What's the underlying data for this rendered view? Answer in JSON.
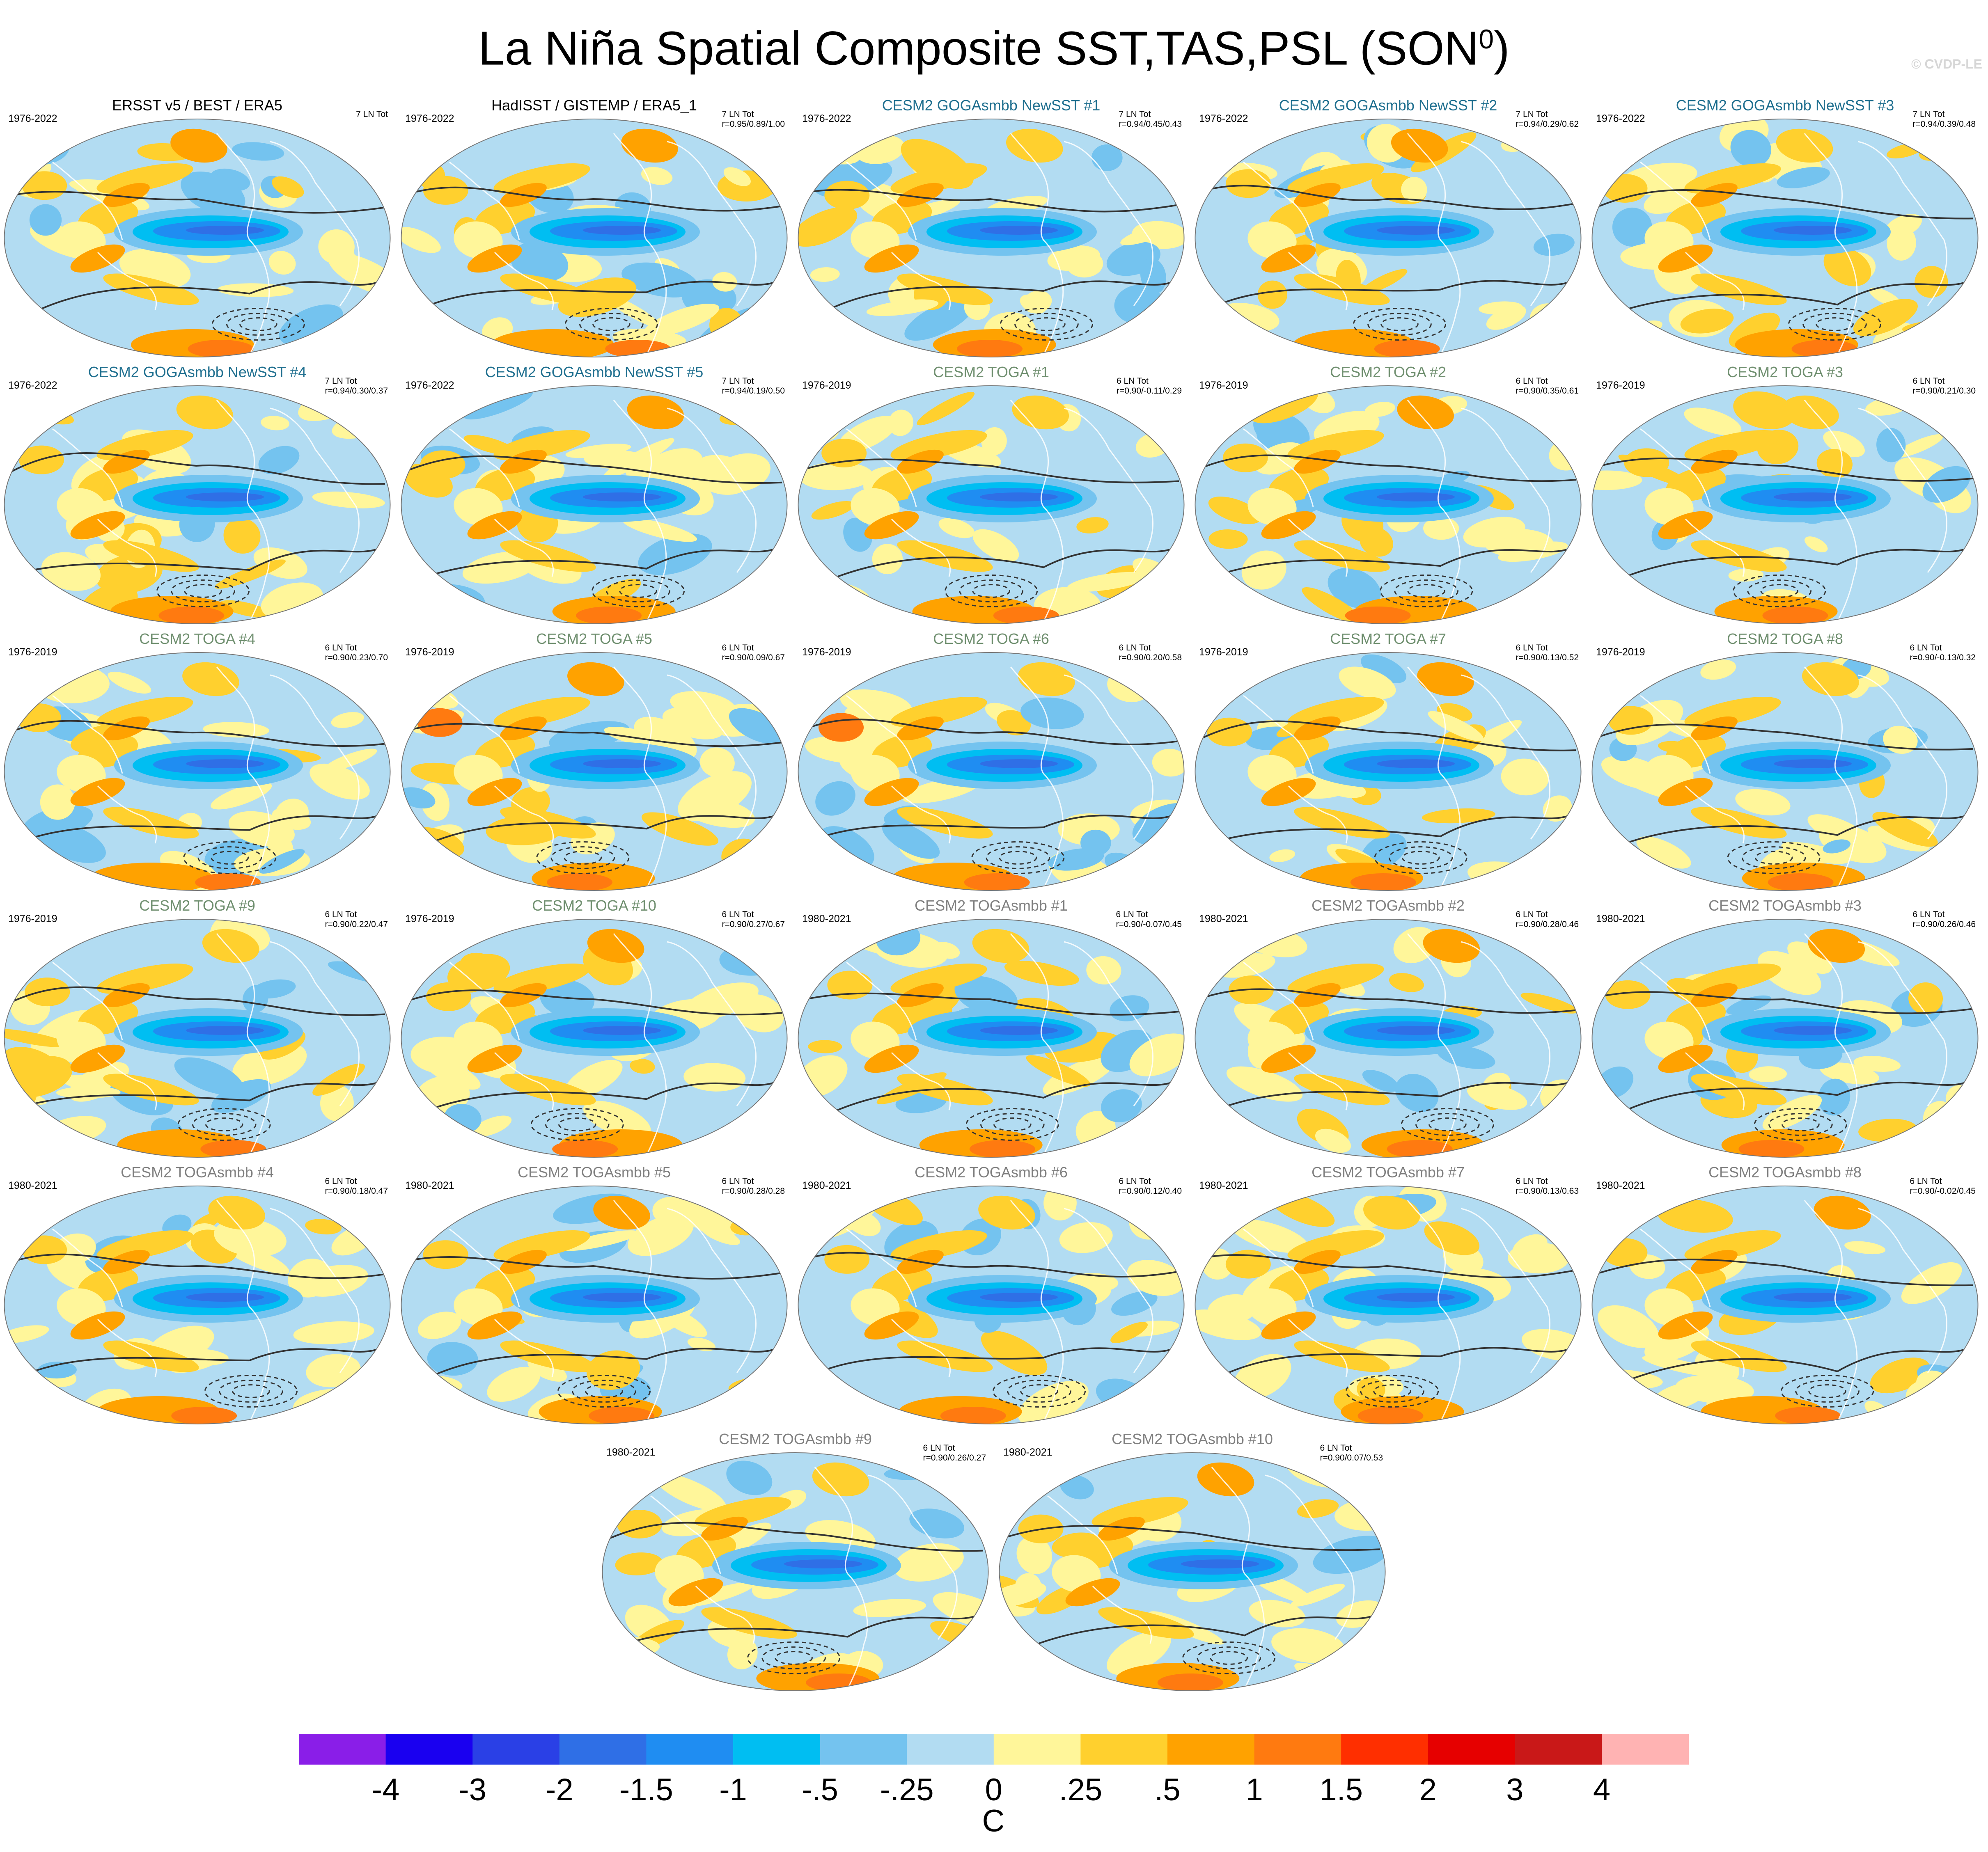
{
  "chart_data": {
    "type": "heatmap",
    "title": "La Niña Spatial Composite SST,TAS,PSL (SON",
    "title_superscript": "0",
    "title_suffix": ")",
    "watermark": "© CVDP-LE",
    "projection": "Robinson (global)",
    "colorbar": {
      "units": "C",
      "tick_labels": [
        "-4",
        "-3",
        "-2",
        "-1.5",
        "-1",
        "-.5",
        "-.25",
        "0",
        ".25",
        ".5",
        "1",
        "1.5",
        "2",
        "3",
        "4"
      ],
      "colors": [
        "#8a1ee8",
        "#1a00f0",
        "#2a40e6",
        "#2f6fe6",
        "#1f8df2",
        "#00bef2",
        "#74c3ef",
        "#b2dcf2",
        "#fff69a",
        "#ffd02e",
        "#ffa200",
        "#ff7a10",
        "#ff2f00",
        "#e60000",
        "#c91818",
        "#ffb3b3"
      ]
    },
    "panels": [
      {
        "title": "ERSST v5 / BEST / ERA5",
        "title_color": "#000000",
        "years": "1976-2022",
        "events": "7 LN Tot",
        "stats": "",
        "variant": 0
      },
      {
        "title": "HadISST / GISTEMP / ERA5_1",
        "title_color": "#000000",
        "years": "1976-2022",
        "events": "7 LN Tot",
        "stats": "r=0.95/0.89/1.00",
        "variant": 1
      },
      {
        "title": "CESM2 GOGAsmbb NewSST #1",
        "title_color": "#1f6f8f",
        "years": "1976-2022",
        "events": "7 LN Tot",
        "stats": "r=0.94/0.45/0.43",
        "variant": 2
      },
      {
        "title": "CESM2 GOGAsmbb NewSST #2",
        "title_color": "#1f6f8f",
        "years": "1976-2022",
        "events": "7 LN Tot",
        "stats": "r=0.94/0.29/0.62",
        "variant": 3
      },
      {
        "title": "CESM2 GOGAsmbb NewSST #3",
        "title_color": "#1f6f8f",
        "years": "1976-2022",
        "events": "7 LN Tot",
        "stats": "r=0.94/0.39/0.48",
        "variant": 4
      },
      {
        "title": "CESM2 GOGAsmbb NewSST #4",
        "title_color": "#1f6f8f",
        "years": "1976-2022",
        "events": "7 LN Tot",
        "stats": "r=0.94/0.30/0.37",
        "variant": 5
      },
      {
        "title": "CESM2 GOGAsmbb NewSST #5",
        "title_color": "#1f6f8f",
        "years": "1976-2022",
        "events": "7 LN Tot",
        "stats": "r=0.94/0.19/0.50",
        "variant": 6
      },
      {
        "title": "CESM2 TOGA #1",
        "title_color": "#6f8f6f",
        "years": "1976-2019",
        "events": "6 LN Tot",
        "stats": "r=0.90/-0.11/0.29",
        "variant": 7
      },
      {
        "title": "CESM2 TOGA #2",
        "title_color": "#6f8f6f",
        "years": "1976-2019",
        "events": "6 LN Tot",
        "stats": "r=0.90/0.35/0.61",
        "variant": 8
      },
      {
        "title": "CESM2 TOGA #3",
        "title_color": "#6f8f6f",
        "years": "1976-2019",
        "events": "6 LN Tot",
        "stats": "r=0.90/0.21/0.30",
        "variant": 9
      },
      {
        "title": "CESM2 TOGA #4",
        "title_color": "#6f8f6f",
        "years": "1976-2019",
        "events": "6 LN Tot",
        "stats": "r=0.90/0.23/0.70",
        "variant": 10
      },
      {
        "title": "CESM2 TOGA #5",
        "title_color": "#6f8f6f",
        "years": "1976-2019",
        "events": "6 LN Tot",
        "stats": "r=0.90/0.09/0.67",
        "variant": 11
      },
      {
        "title": "CESM2 TOGA #6",
        "title_color": "#6f8f6f",
        "years": "1976-2019",
        "events": "6 LN Tot",
        "stats": "r=0.90/0.20/0.58",
        "variant": 12
      },
      {
        "title": "CESM2 TOGA #7",
        "title_color": "#6f8f6f",
        "years": "1976-2019",
        "events": "6 LN Tot",
        "stats": "r=0.90/0.13/0.52",
        "variant": 13
      },
      {
        "title": "CESM2 TOGA #8",
        "title_color": "#6f8f6f",
        "years": "1976-2019",
        "events": "6 LN Tot",
        "stats": "r=0.90/-0.13/0.32",
        "variant": 14
      },
      {
        "title": "CESM2 TOGA #9",
        "title_color": "#6f8f6f",
        "years": "1976-2019",
        "events": "6 LN Tot",
        "stats": "r=0.90/0.22/0.47",
        "variant": 15
      },
      {
        "title": "CESM2 TOGA #10",
        "title_color": "#6f8f6f",
        "years": "1976-2019",
        "events": "6 LN Tot",
        "stats": "r=0.90/0.27/0.67",
        "variant": 16
      },
      {
        "title": "CESM2 TOGAsmbb #1",
        "title_color": "#7f7f7f",
        "years": "1980-2021",
        "events": "6 LN Tot",
        "stats": "r=0.90/-0.07/0.45",
        "variant": 17
      },
      {
        "title": "CESM2 TOGAsmbb #2",
        "title_color": "#7f7f7f",
        "years": "1980-2021",
        "events": "6 LN Tot",
        "stats": "r=0.90/0.28/0.46",
        "variant": 18
      },
      {
        "title": "CESM2 TOGAsmbb #3",
        "title_color": "#7f7f7f",
        "years": "1980-2021",
        "events": "6 LN Tot",
        "stats": "r=0.90/0.26/0.46",
        "variant": 19
      },
      {
        "title": "CESM2 TOGAsmbb #4",
        "title_color": "#7f7f7f",
        "years": "1980-2021",
        "events": "6 LN Tot",
        "stats": "r=0.90/0.18/0.47",
        "variant": 20
      },
      {
        "title": "CESM2 TOGAsmbb #5",
        "title_color": "#7f7f7f",
        "years": "1980-2021",
        "events": "6 LN Tot",
        "stats": "r=0.90/0.28/0.28",
        "variant": 21
      },
      {
        "title": "CESM2 TOGAsmbb #6",
        "title_color": "#7f7f7f",
        "years": "1980-2021",
        "events": "6 LN Tot",
        "stats": "r=0.90/0.12/0.40",
        "variant": 22
      },
      {
        "title": "CESM2 TOGAsmbb #7",
        "title_color": "#7f7f7f",
        "years": "1980-2021",
        "events": "6 LN Tot",
        "stats": "r=0.90/0.13/0.63",
        "variant": 23
      },
      {
        "title": "CESM2 TOGAsmbb #8",
        "title_color": "#7f7f7f",
        "years": "1980-2021",
        "events": "6 LN Tot",
        "stats": "r=0.90/-0.02/0.45",
        "variant": 24
      },
      {
        "title": "CESM2 TOGAsmbb #9",
        "title_color": "#7f7f7f",
        "years": "1980-2021",
        "events": "6 LN Tot",
        "stats": "r=0.90/0.26/0.27",
        "variant": 25
      },
      {
        "title": "CESM2 TOGAsmbb #10",
        "title_color": "#7f7f7f",
        "years": "1980-2021",
        "events": "6 LN Tot",
        "stats": "r=0.90/0.07/0.53",
        "variant": 26
      }
    ]
  }
}
